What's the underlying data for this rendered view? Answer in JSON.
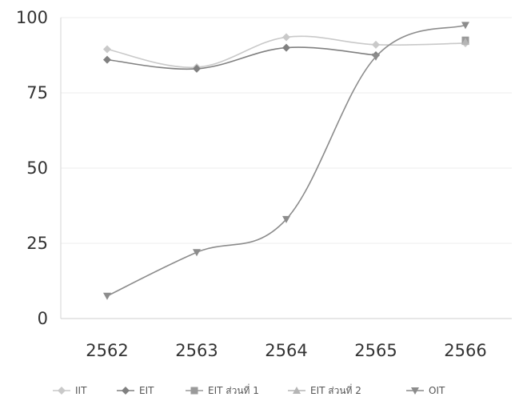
{
  "chart_data": {
    "type": "line",
    "categories": [
      "2562",
      "2563",
      "2564",
      "2565",
      "2566"
    ],
    "y_ticks": [
      "0",
      "25",
      "50",
      "75",
      "100"
    ],
    "ylim": [
      0,
      100
    ],
    "grid": true,
    "legend_position": "bottom",
    "series": [
      {
        "name": "IIT",
        "values": [
          89.5,
          83.5,
          93.5,
          91,
          91.5
        ],
        "color": "#c9c9c9",
        "marker": "diamond"
      },
      {
        "name": "EIT",
        "values": [
          86,
          83,
          90,
          87.5,
          null
        ],
        "color": "#808080",
        "marker": "diamond"
      },
      {
        "name": "EIT ส่วนที่ 1",
        "values": [
          null,
          null,
          null,
          null,
          92.5
        ],
        "color": "#9a9a9a",
        "marker": "square"
      },
      {
        "name": "EIT ส่วนที่ 2",
        "values": [
          null,
          null,
          null,
          null,
          92
        ],
        "color": "#b5b5b5",
        "marker": "triangle"
      },
      {
        "name": "OIT",
        "values": [
          7.5,
          22,
          33,
          87,
          97.5
        ],
        "color": "#8c8c8c",
        "marker": "triangle-down"
      }
    ]
  }
}
